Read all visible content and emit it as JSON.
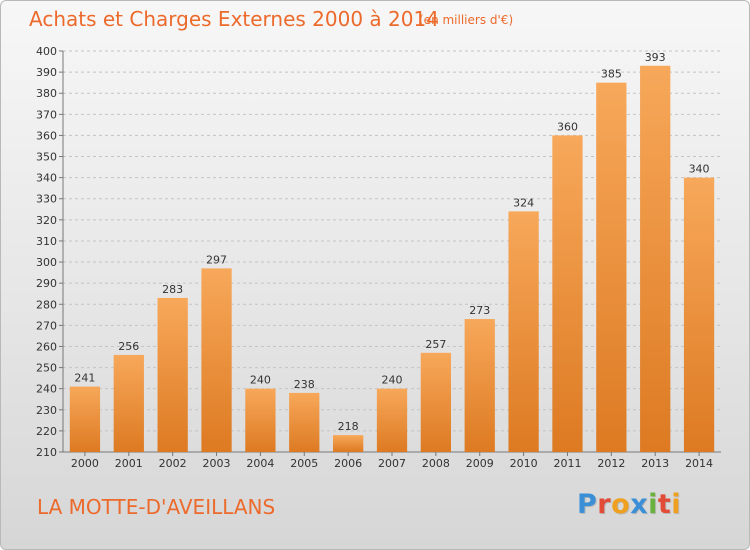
{
  "header": {
    "title": "Achats et Charges Externes 2000 à 2014",
    "unit": "(en milliers d'€)"
  },
  "footer": {
    "place": "LA MOTTE-D'AVEILLANS",
    "logo": {
      "text": "Proxiti",
      "letters": [
        {
          "char": "P",
          "color": "#3a8fd6"
        },
        {
          "char": "r",
          "color": "#e24b36"
        },
        {
          "char": "o",
          "color": "#f0a020"
        },
        {
          "char": "x",
          "color": "#3a8fd6"
        },
        {
          "char": "i",
          "color": "#6ab23e"
        },
        {
          "char": "t",
          "color": "#e24b36"
        },
        {
          "char": "i",
          "color": "#f0a020"
        }
      ]
    }
  },
  "colors": {
    "accent": "#ec6a2c",
    "bar_light": "#f7a85a",
    "bar_dark": "#dd7a22",
    "grid": "#c4c4c4"
  },
  "chart_data": {
    "type": "bar",
    "title": "Achats et Charges Externes 2000 à 2014",
    "subtitle": "(en milliers d'€)",
    "xlabel": "",
    "ylabel": "",
    "categories": [
      "2000",
      "2001",
      "2002",
      "2003",
      "2004",
      "2005",
      "2006",
      "2007",
      "2008",
      "2009",
      "2010",
      "2011",
      "2012",
      "2013",
      "2014"
    ],
    "values": [
      241,
      256,
      283,
      297,
      240,
      238,
      218,
      240,
      257,
      273,
      324,
      360,
      385,
      393,
      340
    ],
    "ylim": [
      210,
      400
    ],
    "ytick_step": 10,
    "grid": true,
    "legend": "none"
  }
}
